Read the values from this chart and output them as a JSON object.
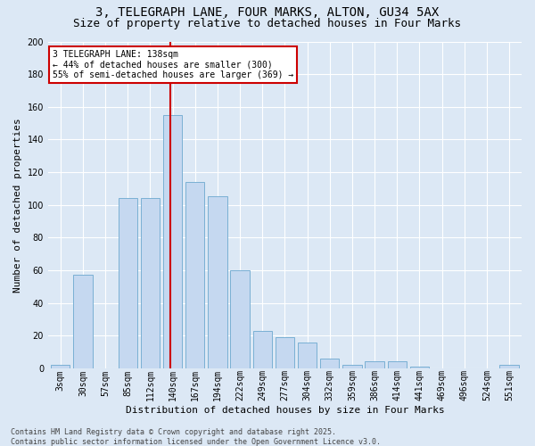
{
  "title_line1": "3, TELEGRAPH LANE, FOUR MARKS, ALTON, GU34 5AX",
  "title_line2": "Size of property relative to detached houses in Four Marks",
  "xlabel": "Distribution of detached houses by size in Four Marks",
  "ylabel": "Number of detached properties",
  "categories": [
    "3sqm",
    "30sqm",
    "57sqm",
    "85sqm",
    "112sqm",
    "140sqm",
    "167sqm",
    "194sqm",
    "222sqm",
    "249sqm",
    "277sqm",
    "304sqm",
    "332sqm",
    "359sqm",
    "386sqm",
    "414sqm",
    "441sqm",
    "469sqm",
    "496sqm",
    "524sqm",
    "551sqm"
  ],
  "bar_vals": [
    2,
    57,
    0,
    104,
    104,
    155,
    114,
    105,
    60,
    23,
    19,
    16,
    6,
    2,
    4,
    4,
    1,
    0,
    0,
    0,
    2
  ],
  "bar_color": "#c5d8f0",
  "bar_edge_color": "#7ab0d4",
  "vline_x_idx": 4.88,
  "vline_color": "#cc0000",
  "annotation_text": "3 TELEGRAPH LANE: 138sqm\n← 44% of detached houses are smaller (300)\n55% of semi-detached houses are larger (369) →",
  "annotation_box_color": "#ffffff",
  "annotation_box_edge": "#cc0000",
  "footer_text": "Contains HM Land Registry data © Crown copyright and database right 2025.\nContains public sector information licensed under the Open Government Licence v3.0.",
  "ylim_max": 200,
  "ytick_max": 200,
  "bg_color": "#dce8f5",
  "grid_color": "#ffffff",
  "title_fontsize": 10,
  "subtitle_fontsize": 9,
  "axis_label_fontsize": 8,
  "tick_fontsize": 7,
  "ann_fontsize": 7,
  "footer_fontsize": 6
}
